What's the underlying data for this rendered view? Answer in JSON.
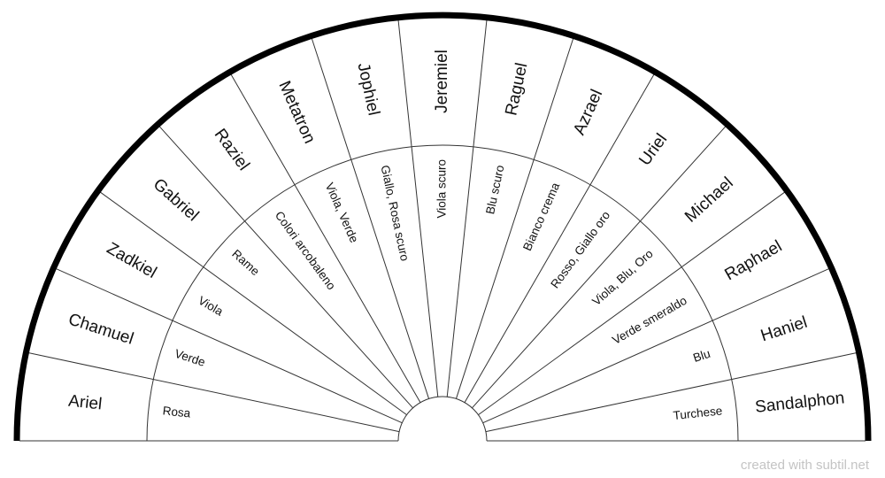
{
  "segments": [
    {
      "angel": "Ariel",
      "color": "Rosa"
    },
    {
      "angel": "Chamuel",
      "color": "Verde"
    },
    {
      "angel": "Zadkiel",
      "color": "Viola"
    },
    {
      "angel": "Gabriel",
      "color": "Rame"
    },
    {
      "angel": "Raziel",
      "color": "Colori arcobaleno"
    },
    {
      "angel": "Metatron",
      "color": "Viola, Verde"
    },
    {
      "angel": "Jophiel",
      "color": "Giallo, Rosa scuro"
    },
    {
      "angel": "Jeremiel",
      "color": "Viola scuro"
    },
    {
      "angel": "Raguel",
      "color": "Blu scuro"
    },
    {
      "angel": "Azrael",
      "color": "Bianco crema"
    },
    {
      "angel": "Uriel",
      "color": "Rosso, Giallo oro"
    },
    {
      "angel": "Michael",
      "color": "Viola, Blu, Oro"
    },
    {
      "angel": "Raphael",
      "color": "Verde smeraldo"
    },
    {
      "angel": "Haniel",
      "color": "Blu"
    },
    {
      "angel": "Sandalphon",
      "color": "Turchese"
    }
  ],
  "footer": {
    "credit": "created with subtil.net"
  },
  "colors": {
    "outer_arc": "#000000",
    "lines": "#333333",
    "background": "#ffffff",
    "credit_text": "#c4c4c4"
  }
}
